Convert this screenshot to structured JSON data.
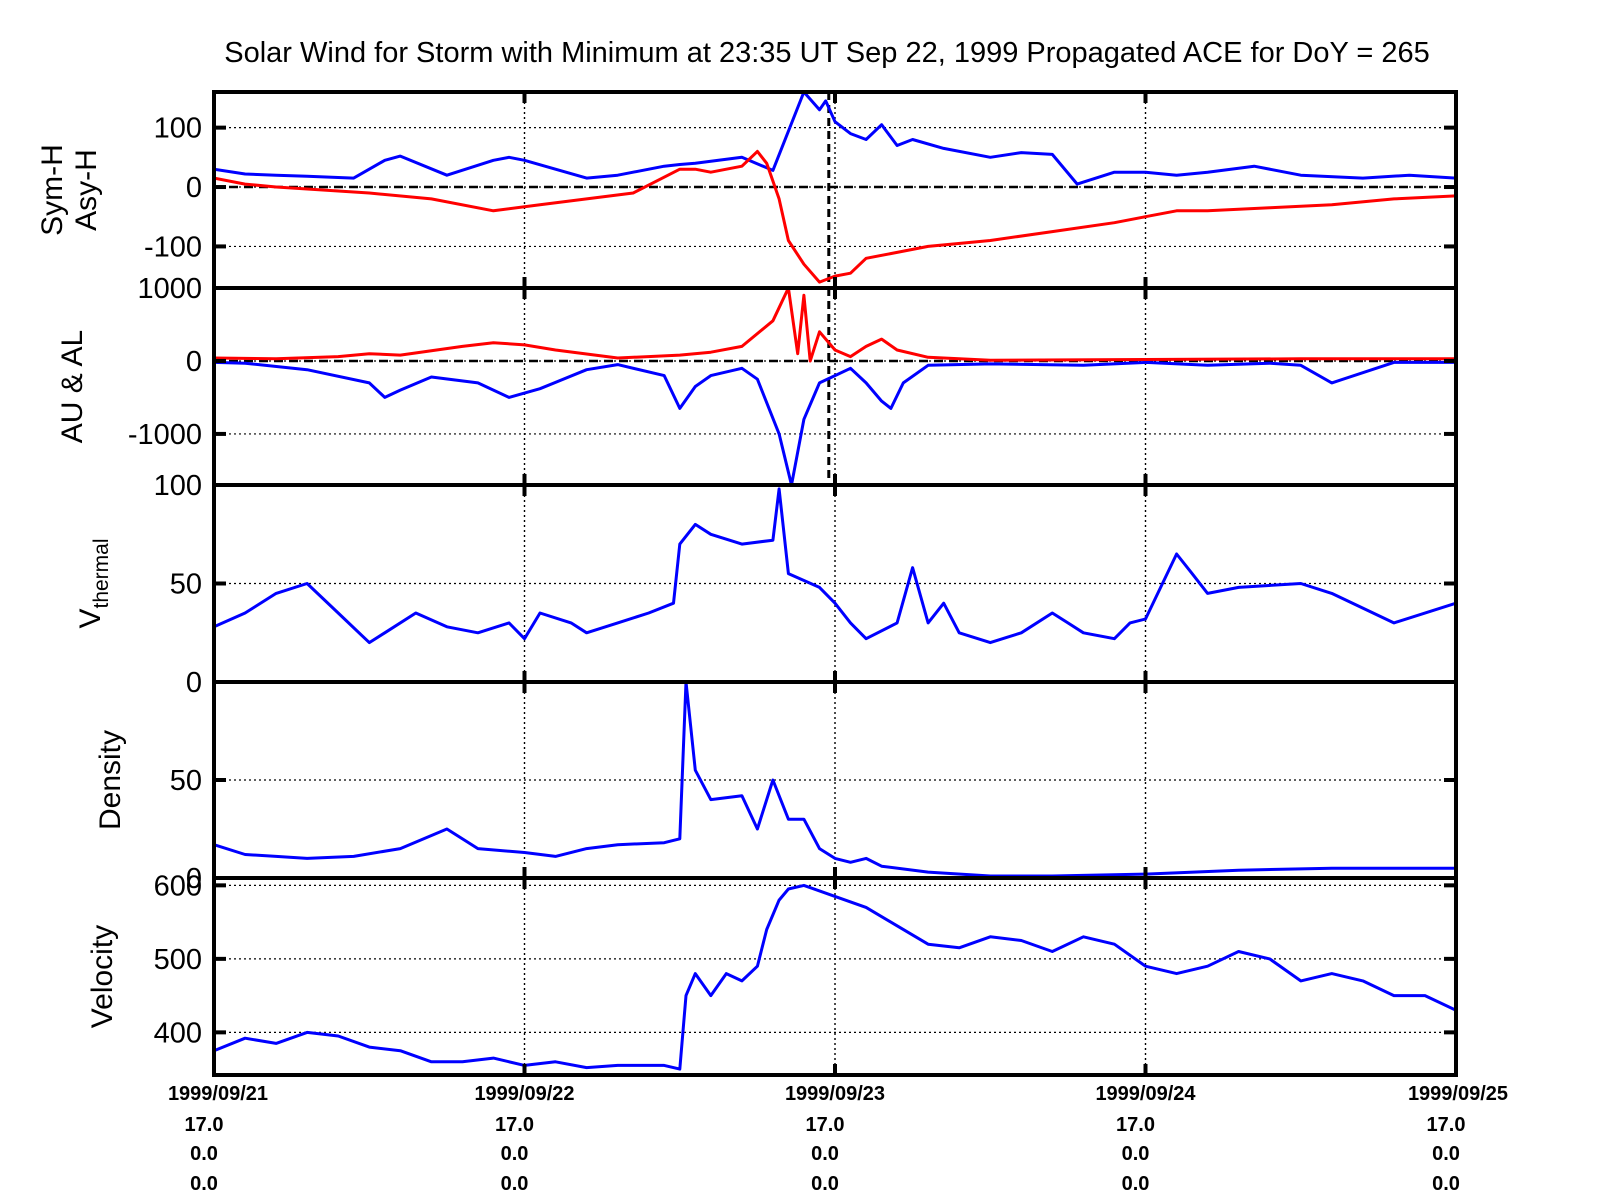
{
  "title": "Solar Wind for Storm with Minimum at 23:35 UT Sep 22, 1999  Propagated ACE for DoY = 265",
  "colors": {
    "blue": "#0000ff",
    "red": "#ff0000",
    "axis": "#000000",
    "grid": "#000000"
  },
  "chart_data": [
    {
      "type": "line",
      "ylabel": [
        "Sym-H",
        "Asy-H"
      ],
      "ylim": [
        -170,
        160
      ],
      "yticks": [
        100,
        0,
        -100
      ],
      "ytick_labels": [
        "100",
        "0",
        "-100"
      ],
      "hline": 0,
      "series": [
        {
          "color": "#0000ff",
          "x": [
            0,
            0.1,
            0.2,
            0.3,
            0.45,
            0.55,
            0.6,
            0.75,
            0.9,
            0.95,
            1.0,
            1.1,
            1.2,
            1.3,
            1.45,
            1.5,
            1.55,
            1.7,
            1.8,
            1.9,
            1.95,
            1.97,
            2.0,
            2.05,
            2.1,
            2.15,
            2.2,
            2.25,
            2.35,
            2.5,
            2.6,
            2.7,
            2.78,
            2.9,
            3.0,
            3.1,
            3.2,
            3.35,
            3.5,
            3.7,
            3.85,
            4.0
          ],
          "y": [
            30,
            22,
            20,
            18,
            15,
            45,
            52,
            20,
            45,
            50,
            45,
            30,
            15,
            20,
            35,
            38,
            40,
            50,
            28,
            160,
            130,
            145,
            110,
            90,
            80,
            105,
            70,
            80,
            65,
            50,
            58,
            55,
            5,
            25,
            25,
            20,
            25,
            35,
            20,
            15,
            20,
            15
          ]
        },
        {
          "color": "#ff0000",
          "x": [
            0,
            0.1,
            0.2,
            0.35,
            0.5,
            0.7,
            0.9,
            1.05,
            1.2,
            1.35,
            1.5,
            1.55,
            1.6,
            1.7,
            1.75,
            1.78,
            1.82,
            1.85,
            1.9,
            1.95,
            2.0,
            2.05,
            2.1,
            2.2,
            2.3,
            2.5,
            2.7,
            2.9,
            3.0,
            3.1,
            3.2,
            3.4,
            3.6,
            3.8,
            4.0
          ],
          "y": [
            15,
            5,
            0,
            -5,
            -10,
            -20,
            -40,
            -30,
            -20,
            -10,
            30,
            30,
            25,
            35,
            60,
            40,
            -20,
            -90,
            -130,
            -160,
            -150,
            -145,
            -120,
            -110,
            -100,
            -90,
            -75,
            -60,
            -50,
            -40,
            -40,
            -35,
            -30,
            -20,
            -15
          ]
        }
      ]
    },
    {
      "type": "line",
      "ylabel": [
        "AU & AL"
      ],
      "ylim": [
        -1700,
        1000
      ],
      "yticks": [
        1000,
        0,
        -1000
      ],
      "ytick_labels": [
        "1000",
        "0",
        "-1000"
      ],
      "hline": 0,
      "series": [
        {
          "color": "#0000ff",
          "x": [
            0,
            0.1,
            0.3,
            0.5,
            0.55,
            0.6,
            0.7,
            0.85,
            0.95,
            1.05,
            1.2,
            1.3,
            1.45,
            1.5,
            1.55,
            1.6,
            1.7,
            1.75,
            1.82,
            1.86,
            1.9,
            1.95,
            2.0,
            2.05,
            2.1,
            2.15,
            2.18,
            2.22,
            2.3,
            2.5,
            2.8,
            3.0,
            3.2,
            3.4,
            3.5,
            3.6,
            3.8,
            4.0
          ],
          "y": [
            -20,
            -30,
            -120,
            -300,
            -500,
            -400,
            -220,
            -300,
            -500,
            -380,
            -120,
            -50,
            -200,
            -650,
            -350,
            -200,
            -100,
            -250,
            -1000,
            -1700,
            -800,
            -300,
            -200,
            -100,
            -300,
            -550,
            -650,
            -300,
            -60,
            -40,
            -60,
            -20,
            -60,
            -30,
            -60,
            -300,
            -20,
            -20
          ]
        },
        {
          "color": "#ff0000",
          "x": [
            0,
            0.2,
            0.4,
            0.5,
            0.6,
            0.8,
            0.9,
            1.0,
            1.1,
            1.3,
            1.5,
            1.6,
            1.7,
            1.8,
            1.85,
            1.88,
            1.9,
            1.92,
            1.95,
            2.0,
            2.05,
            2.1,
            2.15,
            2.2,
            2.3,
            2.5,
            3.0,
            3.5,
            4.0
          ],
          "y": [
            40,
            30,
            60,
            100,
            80,
            200,
            250,
            220,
            150,
            40,
            80,
            120,
            200,
            550,
            1000,
            100,
            900,
            0,
            400,
            150,
            60,
            200,
            300,
            150,
            50,
            10,
            20,
            30,
            30
          ]
        }
      ]
    },
    {
      "type": "line",
      "ylabel": [
        "V",
        "thermal"
      ],
      "ylim": [
        0,
        100
      ],
      "yticks": [
        100,
        50,
        0
      ],
      "ytick_labels": [
        "100",
        "50",
        "0"
      ],
      "series": [
        {
          "color": "#0000ff",
          "x": [
            0,
            0.1,
            0.2,
            0.3,
            0.4,
            0.5,
            0.55,
            0.65,
            0.75,
            0.85,
            0.95,
            1.0,
            1.05,
            1.15,
            1.2,
            1.3,
            1.4,
            1.48,
            1.5,
            1.55,
            1.6,
            1.7,
            1.8,
            1.82,
            1.85,
            1.95,
            2.0,
            2.05,
            2.1,
            2.2,
            2.25,
            2.3,
            2.35,
            2.4,
            2.5,
            2.6,
            2.7,
            2.75,
            2.8,
            2.9,
            2.95,
            3.0,
            3.1,
            3.15,
            3.2,
            3.3,
            3.5,
            3.6,
            3.8,
            4.0
          ],
          "y": [
            28,
            35,
            45,
            50,
            35,
            20,
            25,
            35,
            28,
            25,
            30,
            22,
            35,
            30,
            25,
            30,
            35,
            40,
            70,
            80,
            75,
            70,
            72,
            98,
            55,
            48,
            40,
            30,
            22,
            30,
            58,
            30,
            40,
            25,
            20,
            25,
            35,
            30,
            25,
            22,
            30,
            32,
            65,
            55,
            45,
            48,
            50,
            45,
            30,
            40
          ]
        }
      ]
    },
    {
      "type": "line",
      "ylabel": [
        "Density"
      ],
      "ylim": [
        0,
        100
      ],
      "yticks": [
        50,
        0
      ],
      "ytick_labels": [
        "50",
        "0"
      ],
      "series": [
        {
          "color": "#0000ff",
          "x": [
            0,
            0.1,
            0.2,
            0.3,
            0.45,
            0.6,
            0.75,
            0.85,
            1.0,
            1.1,
            1.2,
            1.3,
            1.45,
            1.5,
            1.52,
            1.55,
            1.6,
            1.7,
            1.75,
            1.8,
            1.85,
            1.9,
            1.95,
            2.0,
            2.05,
            2.1,
            2.15,
            2.3,
            2.5,
            2.7,
            3.0,
            3.3,
            3.6,
            4.0
          ],
          "y": [
            17,
            12,
            11,
            10,
            11,
            15,
            25,
            15,
            13,
            11,
            15,
            17,
            18,
            20,
            100,
            55,
            40,
            42,
            25,
            50,
            30,
            30,
            15,
            10,
            8,
            10,
            6,
            3,
            1,
            1,
            2,
            4,
            5,
            5
          ]
        }
      ]
    },
    {
      "type": "line",
      "ylabel": [
        "Velocity"
      ],
      "ylim": [
        342,
        610
      ],
      "yticks": [
        600,
        500,
        400
      ],
      "ytick_labels": [
        "600",
        "500",
        "400"
      ],
      "series": [
        {
          "color": "#0000ff",
          "x": [
            0,
            0.1,
            0.2,
            0.3,
            0.4,
            0.5,
            0.6,
            0.7,
            0.8,
            0.9,
            1.0,
            1.1,
            1.2,
            1.3,
            1.45,
            1.5,
            1.52,
            1.55,
            1.6,
            1.65,
            1.7,
            1.75,
            1.78,
            1.82,
            1.85,
            1.9,
            2.0,
            2.1,
            2.2,
            2.3,
            2.4,
            2.5,
            2.6,
            2.7,
            2.8,
            2.9,
            3.0,
            3.1,
            3.2,
            3.3,
            3.4,
            3.5,
            3.6,
            3.7,
            3.8,
            3.9,
            4.0
          ],
          "y": [
            375,
            392,
            385,
            400,
            395,
            380,
            375,
            360,
            360,
            365,
            355,
            360,
            352,
            355,
            355,
            350,
            450,
            480,
            450,
            480,
            470,
            490,
            540,
            580,
            595,
            600,
            585,
            570,
            545,
            520,
            515,
            530,
            525,
            510,
            530,
            520,
            490,
            480,
            490,
            510,
            500,
            470,
            480,
            470,
            450,
            450,
            430
          ]
        }
      ]
    }
  ],
  "x_axis": {
    "range": [
      0,
      4
    ],
    "ticks": [
      0,
      1,
      2,
      3,
      4
    ],
    "tick_labels": [
      [
        "1999/09/21",
        "17.0",
        "0.0",
        "0.0"
      ],
      [
        "1999/09/22",
        "17.0",
        "0.0",
        "0.0"
      ],
      [
        "1999/09/23",
        "17.0",
        "0.0",
        "0.0"
      ],
      [
        "1999/09/24",
        "17.0",
        "0.0",
        "0.0"
      ],
      [
        "1999/09/25",
        "17.0",
        "0.0",
        "0.0"
      ]
    ],
    "storm_minimum_marker": 1.98
  }
}
